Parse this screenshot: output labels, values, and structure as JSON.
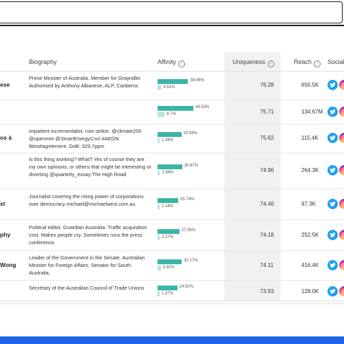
{
  "header": {
    "biography": "Biography",
    "affinity": "Affinity",
    "uniqueness": "Uniqueness",
    "reach": "Reach",
    "social": "Social",
    "info_icon": "i"
  },
  "rows": [
    {
      "name": "ese",
      "bio": "Prime Minister of Australia. Member for Grayndler. Authorised by Anthony Albanese, ALP, Canberra.",
      "aff1": "38.06%",
      "aff1_value": 38.06,
      "aff2": "4.61%",
      "aff2_value": 4.61,
      "uniq": "76.28",
      "reach": "650.5K"
    },
    {
      "name": "",
      "bio": "",
      "aff1": "44.53%",
      "aff1_value": 44.53,
      "aff2": "8.7%",
      "aff2_value": 8.7,
      "uniq": "75.71",
      "reach": "134.67M"
    },
    {
      "name": "os à",
      "bio": "impatient incrementalist. root striker. @climate200 @openmm @SmartEnergyCncl #AEGN likes#agreement. DoB: 329.7ppm",
      "aff1": "29.58%",
      "aff1_value": 29.58,
      "aff2": "1.36%",
      "aff2_value": 1.36,
      "uniq": "75.62",
      "reach": "115.4K"
    },
    {
      "name": "",
      "bio": "Is this thing working? What? Yes of course they are my own opinions, or others that might be interesting or diverting @quarterly_essay:The High Road",
      "aff1": "30.67%",
      "aff1_value": 30.67,
      "aff2": "2.89%",
      "aff2_value": 2.89,
      "uniq": "74.96",
      "reach": "264.3K"
    },
    {
      "name": "st",
      "bio": "Journalist covering the rising power of corporations over democracy michael@michaelwest.com.au",
      "aff1": "25.74%",
      "aff1_value": 25.74,
      "aff2": "1.18%",
      "aff2_value": 1.18,
      "uniq": "74.46",
      "reach": "97.3K"
    },
    {
      "name": "phy",
      "bio": "Political editor, Guardian Australia. Traffic acquisition cost. Makes people cry. Sometimes runs the press conference.",
      "aff1": "27.08%",
      "aff1_value": 27.08,
      "aff2": "2.27%",
      "aff2_value": 2.27,
      "uniq": "74.18",
      "reach": "252.5K"
    },
    {
      "name": "Wong",
      "bio": "Leader of the Government in the Senate. Australian Minister for Foreign Affairs. Senator for South Australia.",
      "aff1": "30.17%",
      "aff1_value": 30.17,
      "aff2": "3.92%",
      "aff2_value": 3.92,
      "uniq": "74.11",
      "reach": "416.4K"
    },
    {
      "name": "",
      "bio": "Secretary of the Australian Council of Trade Unions",
      "aff1": "24.52%",
      "aff1_value": 24.52,
      "aff2": "1.37%",
      "aff2_value": 1.37,
      "uniq": "73.93",
      "reach": "128.0K"
    }
  ],
  "icons": {
    "twitter": "twitter-icon",
    "instagram": "instagram-icon"
  },
  "colors": {
    "affinity_bar": "#3ab5a6",
    "affinity_bar_light": "#b9e3de",
    "twitter": "#1da1f2",
    "accent_bar": "#1e63e8"
  }
}
